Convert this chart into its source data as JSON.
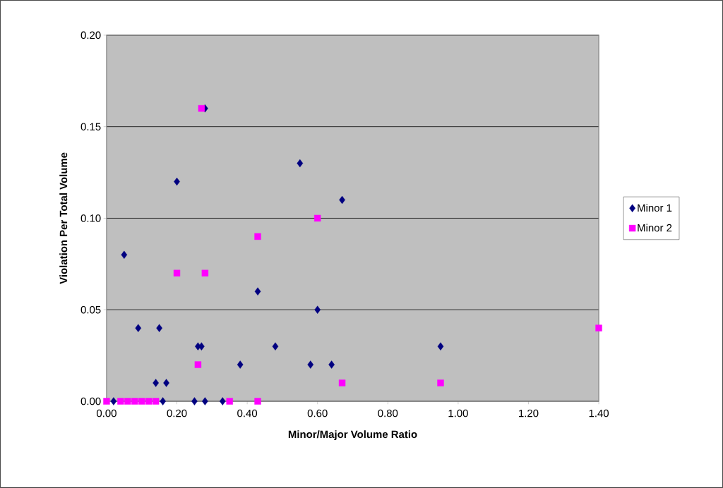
{
  "chart_data": {
    "type": "scatter",
    "xlabel": "Minor/Major Volume Ratio",
    "ylabel": "Violation Per Total Volume",
    "xlim": [
      0,
      1.4
    ],
    "xticks": [
      {
        "value": 0,
        "label": "0.00"
      },
      {
        "value": 0.2,
        "label": "0.20"
      },
      {
        "value": 0.4,
        "label": "0.40"
      },
      {
        "value": 0.6,
        "label": "0.60"
      },
      {
        "value": 0.8,
        "label": "0.80"
      },
      {
        "value": 1.0,
        "label": "1.00"
      },
      {
        "value": 1.2,
        "label": "1.20"
      },
      {
        "value": 1.4,
        "label": "1.40"
      }
    ],
    "ylim": [
      0,
      0.2
    ],
    "yticks": [
      {
        "value": 0,
        "label": "0.00"
      },
      {
        "value": 0.05,
        "label": "0.05"
      },
      {
        "value": 0.1,
        "label": "0.10"
      },
      {
        "value": 0.15,
        "label": "0.15"
      },
      {
        "value": 0.2,
        "label": "0.20"
      }
    ],
    "grid": "y",
    "legend": "right",
    "series": [
      {
        "name": "Minor 1",
        "color": "#000080",
        "marker": "diamond",
        "x": [
          0.28,
          0.2,
          0.55,
          0.67,
          0.05,
          0.43,
          0.6,
          0.09,
          0.15,
          0.26,
          0.27,
          0.48,
          0.38,
          0.58,
          0.64,
          0.95,
          0.14,
          0.17,
          0.02,
          0.16,
          0.25,
          0.28,
          0.33
        ],
        "values": [
          0.16,
          0.12,
          0.13,
          0.11,
          0.08,
          0.06,
          0.05,
          0.04,
          0.04,
          0.03,
          0.03,
          0.03,
          0.02,
          0.02,
          0.02,
          0.03,
          0.01,
          0.01,
          0,
          0,
          0,
          0,
          0
        ]
      },
      {
        "name": "Minor 2",
        "color": "#ff00ff",
        "marker": "square",
        "x": [
          0.27,
          0.2,
          0.28,
          0.43,
          0.6,
          0.26,
          0.67,
          0.95,
          1.4,
          0.0,
          0.04,
          0.06,
          0.08,
          0.1,
          0.12,
          0.14,
          0.35,
          0.43
        ],
        "values": [
          0.16,
          0.07,
          0.07,
          0.09,
          0.1,
          0.02,
          0.01,
          0.01,
          0.04,
          0,
          0,
          0,
          0,
          0,
          0,
          0,
          0,
          0
        ]
      }
    ]
  }
}
